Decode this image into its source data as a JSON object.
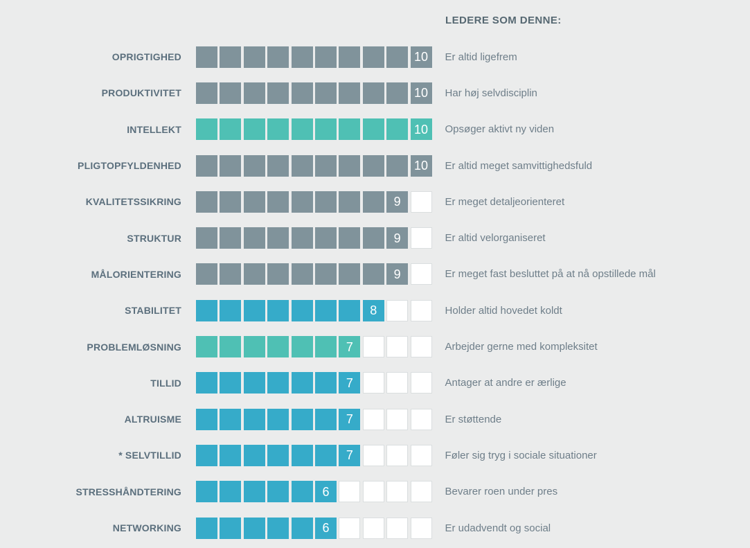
{
  "header": {
    "title": "LEDERE SOM DENNE:"
  },
  "colors": {
    "background": "#ebecec",
    "gray": "#80939b",
    "teal": "#4fc0b4",
    "blue": "#36abc9",
    "empty_fill": "#ffffff",
    "empty_border": "#dadedf",
    "label_text": "#5b6f7d",
    "header_text": "#566872",
    "description_text": "#6e7e89",
    "score_text": "#ffffff"
  },
  "chart_data": {
    "type": "bar",
    "title": "LEDERE SOM DENNE:",
    "scale_min": 0,
    "scale_max": 10,
    "cells_per_row": 10,
    "legend_position": "none",
    "grid": false,
    "categories": [
      "OPRIGTIGHED",
      "PRODUKTIVITET",
      "INTELLEKT",
      "PLIGTOPFYLDENHED",
      "KVALITETSSIKRING",
      "STRUKTUR",
      "MÅLORIENTERING",
      "STABILITET",
      "PROBLEMLØSNING",
      "TILLID",
      "ALTRUISME",
      "* SELVTILLID",
      "STRESSHÅNDTERING",
      "NETWORKING"
    ],
    "values": [
      10,
      10,
      10,
      10,
      9,
      9,
      9,
      8,
      7,
      7,
      7,
      7,
      6,
      6
    ],
    "rows": [
      {
        "label": "OPRIGTIGHED",
        "value": 10,
        "color": "gray",
        "description": "Er altid ligefrem"
      },
      {
        "label": "PRODUKTIVITET",
        "value": 10,
        "color": "gray",
        "description": "Har høj selvdisciplin"
      },
      {
        "label": "INTELLEKT",
        "value": 10,
        "color": "teal",
        "description": "Opsøger aktivt ny viden"
      },
      {
        "label": "PLIGTOPFYLDENHED",
        "value": 10,
        "color": "gray",
        "description": "Er altid meget samvittighedsfuld"
      },
      {
        "label": "KVALITETSSIKRING",
        "value": 9,
        "color": "gray",
        "description": "Er meget detaljeorienteret"
      },
      {
        "label": "STRUKTUR",
        "value": 9,
        "color": "gray",
        "description": "Er altid velorganiseret"
      },
      {
        "label": "MÅLORIENTERING",
        "value": 9,
        "color": "gray",
        "description": "Er meget fast besluttet på at nå opstillede mål"
      },
      {
        "label": "STABILITET",
        "value": 8,
        "color": "blue",
        "description": "Holder altid hovedet koldt"
      },
      {
        "label": "PROBLEMLØSNING",
        "value": 7,
        "color": "teal",
        "description": "Arbejder gerne med kompleksitet"
      },
      {
        "label": "TILLID",
        "value": 7,
        "color": "blue",
        "description": "Antager at andre er ærlige"
      },
      {
        "label": "ALTRUISME",
        "value": 7,
        "color": "blue",
        "description": "Er støttende"
      },
      {
        "label": "* SELVTILLID",
        "value": 7,
        "color": "blue",
        "description": "Føler sig tryg i sociale situationer"
      },
      {
        "label": "STRESSHÅNDTERING",
        "value": 6,
        "color": "blue",
        "description": "Bevarer roen under pres"
      },
      {
        "label": "NETWORKING",
        "value": 6,
        "color": "blue",
        "description": "Er udadvendt og social"
      }
    ]
  }
}
